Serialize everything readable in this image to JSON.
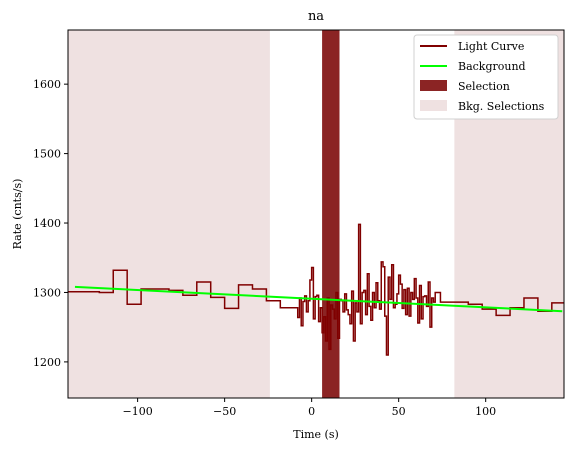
{
  "chart_data": {
    "type": "line",
    "title": "na",
    "xlabel": "Time (s)",
    "ylabel": "Rate (cnts/s)",
    "xlim": [
      -140,
      145
    ],
    "ylim": [
      1148,
      1678
    ],
    "xticks": [
      -100,
      -50,
      0,
      50,
      100
    ],
    "xtick_labels": [
      "−100",
      "−50",
      "0",
      "50",
      "100"
    ],
    "yticks": [
      1200,
      1300,
      1400,
      1500,
      1600
    ],
    "ytick_labels": [
      "1200",
      "1300",
      "1400",
      "1500",
      "1600"
    ],
    "legend_position": "top-right",
    "colors": {
      "light_curve": "#800000",
      "background": "#00ff00",
      "selection": "#8b2424",
      "bkg_selection": "#efe1e1"
    },
    "series": [
      {
        "name": "Light Curve",
        "style": "step",
        "points": [
          [
            -140,
            1301
          ],
          [
            -130,
            1301
          ],
          [
            -122,
            1300
          ],
          [
            -114,
            1332
          ],
          [
            -106,
            1283
          ],
          [
            -98,
            1305
          ],
          [
            -90,
            1305
          ],
          [
            -82,
            1303
          ],
          [
            -74,
            1296
          ],
          [
            -66,
            1315
          ],
          [
            -58,
            1293
          ],
          [
            -50,
            1277
          ],
          [
            -42,
            1311
          ],
          [
            -34,
            1305
          ],
          [
            -26,
            1288
          ],
          [
            -18,
            1278
          ],
          [
            -10,
            1278
          ],
          [
            -8,
            1264
          ],
          [
            -7,
            1292
          ],
          [
            -6,
            1252
          ],
          [
            -5,
            1287
          ],
          [
            -4,
            1295
          ],
          [
            -3,
            1272
          ],
          [
            -2,
            1288
          ],
          [
            -1,
            1318
          ],
          [
            0,
            1336
          ],
          [
            1,
            1262
          ],
          [
            2,
            1294
          ],
          [
            3,
            1296
          ],
          [
            4,
            1258
          ],
          [
            5,
            1278
          ],
          [
            6,
            1242
          ],
          [
            7,
            1265
          ],
          [
            8,
            1230
          ],
          [
            9,
            1292
          ],
          [
            10,
            1218
          ],
          [
            11,
            1282
          ],
          [
            12,
            1276
          ],
          [
            13,
            1262
          ],
          [
            14,
            1300
          ],
          [
            15,
            1234
          ],
          [
            16,
            1290
          ],
          [
            17,
            1288
          ],
          [
            18,
            1272
          ],
          [
            19,
            1298
          ],
          [
            20,
            1275
          ],
          [
            21,
            1268
          ],
          [
            22,
            1255
          ],
          [
            23,
            1302
          ],
          [
            24,
            1230
          ],
          [
            25,
            1285
          ],
          [
            26,
            1272
          ],
          [
            27,
            1398
          ],
          [
            28,
            1255
          ],
          [
            29,
            1300
          ],
          [
            30,
            1303
          ],
          [
            31,
            1268
          ],
          [
            32,
            1327
          ],
          [
            33,
            1280
          ],
          [
            34,
            1260
          ],
          [
            35,
            1300
          ],
          [
            36,
            1278
          ],
          [
            37,
            1314
          ],
          [
            38,
            1288
          ],
          [
            39,
            1276
          ],
          [
            40,
            1344
          ],
          [
            41,
            1337
          ],
          [
            42,
            1266
          ],
          [
            43,
            1210
          ],
          [
            44,
            1322
          ],
          [
            45,
            1290
          ],
          [
            46,
            1340
          ],
          [
            47,
            1278
          ],
          [
            48,
            1283
          ],
          [
            49,
            1298
          ],
          [
            50,
            1325
          ],
          [
            51,
            1312
          ],
          [
            52,
            1277
          ],
          [
            53,
            1304
          ],
          [
            54,
            1268
          ],
          [
            55,
            1306
          ],
          [
            56,
            1266
          ],
          [
            57,
            1300
          ],
          [
            58,
            1290
          ],
          [
            59,
            1320
          ],
          [
            60,
            1292
          ],
          [
            61,
            1256
          ],
          [
            62,
            1310
          ],
          [
            63,
            1262
          ],
          [
            64,
            1294
          ],
          [
            65,
            1295
          ],
          [
            66,
            1280
          ],
          [
            67,
            1315
          ],
          [
            68,
            1250
          ],
          [
            69,
            1292
          ],
          [
            70,
            1286
          ],
          [
            71,
            1300
          ],
          [
            72,
            1300
          ],
          [
            74,
            1286
          ],
          [
            82,
            1286
          ],
          [
            90,
            1283
          ],
          [
            98,
            1276
          ],
          [
            106,
            1267
          ],
          [
            114,
            1278
          ],
          [
            122,
            1292
          ],
          [
            130,
            1273
          ],
          [
            138,
            1285
          ],
          [
            145,
            1285
          ]
        ]
      },
      {
        "name": "Background",
        "style": "line",
        "x": [
          -136,
          144
        ],
        "y": [
          1308,
          1273
        ]
      }
    ],
    "selection": {
      "name": "Selection",
      "ranges": [
        [
          6,
          16
        ]
      ]
    },
    "bkg_selections": {
      "name": "Bkg. Selections",
      "ranges": [
        [
          -140,
          -24
        ],
        [
          82,
          145
        ]
      ]
    }
  }
}
